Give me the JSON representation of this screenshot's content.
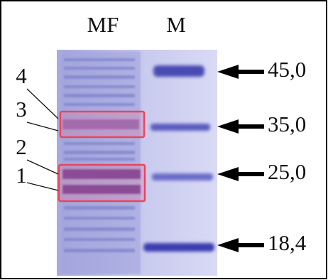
{
  "lanes": [
    "MF",
    "M"
  ],
  "band_labels": [
    "4",
    "3",
    "2",
    "1"
  ],
  "markers": [
    "45,0",
    "35,0",
    "25,0",
    "18,4"
  ]
}
